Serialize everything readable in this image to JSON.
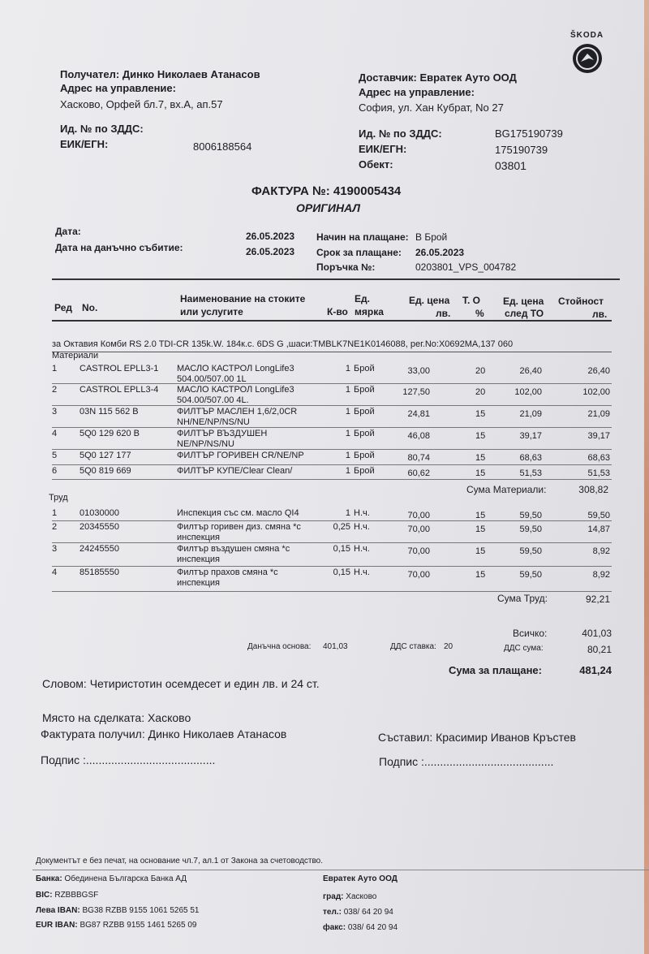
{
  "brand": "ŠKODA",
  "recipient": {
    "line1": "Получател: Динко Николаев Атанасов",
    "addr_label": "Адрес на управление:",
    "addr": "Хасково, Орфей бл.7, вх.А, ап.57",
    "vat_label": "Ид. № по ЗДДС:",
    "eik_label": "ЕИК/ЕГН:",
    "eik": "8006188564"
  },
  "supplier": {
    "line1": "Доставчик: Евратек Ауто ООД",
    "addr_label": "Адрес на управление:",
    "addr": "София, ул. Хан Кубрат, No 27",
    "vat_label": "Ид. № по ЗДДС:",
    "vat": "BG175190739",
    "eik_label": "ЕИК/ЕГН:",
    "eik": "175190739",
    "obj_label": "Обект:",
    "obj": "03801"
  },
  "invoice": {
    "title": "ФАКТУРА №: 4190005434",
    "subtitle": "ОРИГИНАЛ",
    "date_label": "Дата:",
    "date": "26.05.2023",
    "tax_date_label": "Дата на данъчно събитие:",
    "tax_date": "26.05.2023",
    "pay_method_label": "Начин на плащане:",
    "pay_method": "В Брой",
    "due_label": "Срок за плащане:",
    "due": "26.05.2023",
    "order_label": "Поръчка №:",
    "order": "0203801_VPS_004782"
  },
  "headers": {
    "red": "Ред",
    "no": "No.",
    "name1": "Наименование на стоките",
    "name2": "или услугите",
    "unit1": "Ед.",
    "qty": "К-во",
    "unit2": "мярка",
    "price1": "Ед. цена",
    "price2": "лв.",
    "to1": "Т. О",
    "to2": "%",
    "after1": "Ед. цена",
    "after2": "след ТО",
    "total1": "Стойност",
    "total2": "лв."
  },
  "vehicle": "за Октавия Комби RS 2.0 TDI-CR 135k.W. 184к.с. 6DS G ,шаси:TMBLK7NE1K0146088, рег.No:X0692MA,137 060",
  "materials_label": "Материали",
  "materials": [
    {
      "n": "1",
      "code": "CASTROL EPLL3-1",
      "name": "МАСЛО КАСТРОЛ LongLife3",
      "name2": "504.00/507.00 1L",
      "qty": "1",
      "unit": "Брой",
      "price": "33,00",
      "to": "20",
      "after": "26,40",
      "total": "26,40"
    },
    {
      "n": "2",
      "code": "CASTROL EPLL3-4",
      "name": "МАСЛО КАСТРОЛ LongLife3",
      "name2": "504.00/507.00 4L.",
      "qty": "1",
      "unit": "Брой",
      "price": "127,50",
      "to": "20",
      "after": "102,00",
      "total": "102,00"
    },
    {
      "n": "3",
      "code": "03N 115 562 B",
      "name": "ФИЛТЪР МАСЛЕН 1,6/2,0CR",
      "name2": "NH/NE/NP/NS/NU",
      "qty": "1",
      "unit": "Брой",
      "price": "24,81",
      "to": "15",
      "after": "21,09",
      "total": "21,09"
    },
    {
      "n": "4",
      "code": "5Q0 129 620 B",
      "name": "ФИЛТЪР ВЪЗДУШЕН",
      "name2": "NE/NP/NS/NU",
      "qty": "1",
      "unit": "Брой",
      "price": "46,08",
      "to": "15",
      "after": "39,17",
      "total": "39,17"
    },
    {
      "n": "5",
      "code": "5Q0 127 177",
      "name": "ФИЛТЪР ГОРИВЕН CR/NE/NP",
      "name2": "",
      "qty": "1",
      "unit": "Брой",
      "price": "80,74",
      "to": "15",
      "after": "68,63",
      "total": "68,63"
    },
    {
      "n": "6",
      "code": "5Q0 819 669",
      "name": "ФИЛТЪР КУПЕ/Clear Clean/",
      "name2": "",
      "qty": "1",
      "unit": "Брой",
      "price": "60,62",
      "to": "15",
      "after": "51,53",
      "total": "51,53"
    }
  ],
  "materials_sum_label": "Сума Материали:",
  "materials_sum": "308,82",
  "labor_label": "Труд",
  "labor": [
    {
      "n": "1",
      "code": "01030000",
      "name": "Инспекция със см. масло QI4",
      "name2": "",
      "qty": "1",
      "unit": "Н.ч.",
      "price": "70,00",
      "to": "15",
      "after": "59,50",
      "total": "59,50"
    },
    {
      "n": "2",
      "code": "20345550",
      "name": "Филтър горивен диз. смяна *с",
      "name2": "инспекция",
      "qty": "0,25",
      "unit": "Н.ч.",
      "price": "70,00",
      "to": "15",
      "after": "59,50",
      "total": "14,87"
    },
    {
      "n": "3",
      "code": "24245550",
      "name": "Филтър въздушен смяна *с",
      "name2": "инспекция",
      "qty": "0,15",
      "unit": "Н.ч.",
      "price": "70,00",
      "to": "15",
      "after": "59,50",
      "total": "8,92"
    },
    {
      "n": "4",
      "code": "85185550",
      "name": "Филтър прахов смяна *с",
      "name2": "инспекция",
      "qty": "0,15",
      "unit": "Н.ч.",
      "price": "70,00",
      "to": "15",
      "after": "59,50",
      "total": "8,92"
    }
  ],
  "labor_sum_label": "Сума Труд:",
  "labor_sum": "92,21",
  "totals": {
    "all_label": "Всичко:",
    "all": "401,03",
    "base_label": "Данъчна основа:",
    "base": "401,03",
    "vat_rate_label": "ДДС ставка:",
    "vat_rate": "20",
    "vat_label": "ДДС сума:",
    "vat": "80,21",
    "pay_label": "Сума за плащане:",
    "pay": "481,24"
  },
  "words": "Словом: Четиристотин осемдесет и един лв. и 24 ст.",
  "place": "Място на сделката: Хасково",
  "received": "Фактурата получил: Динко Николаев Атанасов",
  "composed": "Съставил: Красимир Иванов Кръстев",
  "sign_left": "Подпис :.........................................",
  "sign_right": "Подпис :.........................................",
  "note": "Документът е без печат, на основание чл.7, ал.1 от Закона за счетоводство.",
  "bank": {
    "bank_label": "Банка:",
    "bank": "Обединена Българска Банка АД",
    "bic_label": "BIC:",
    "bic": "RZBBBGSF",
    "lev_label": "Лева IBAN:",
    "lev": "BG38 RZBB 9155 1061 5265 51",
    "eur_label": "EUR IBAN:",
    "eur": "BG87 RZBB 9155 1461 5265 09"
  },
  "company": {
    "name": "Евратек Ауто ООД",
    "city_label": "град:",
    "city": "Хасково",
    "tel_label": "тел.:",
    "tel": "038/ 64 20 94",
    "fax_label": "факс:",
    "fax": "038/ 64 20 94"
  }
}
